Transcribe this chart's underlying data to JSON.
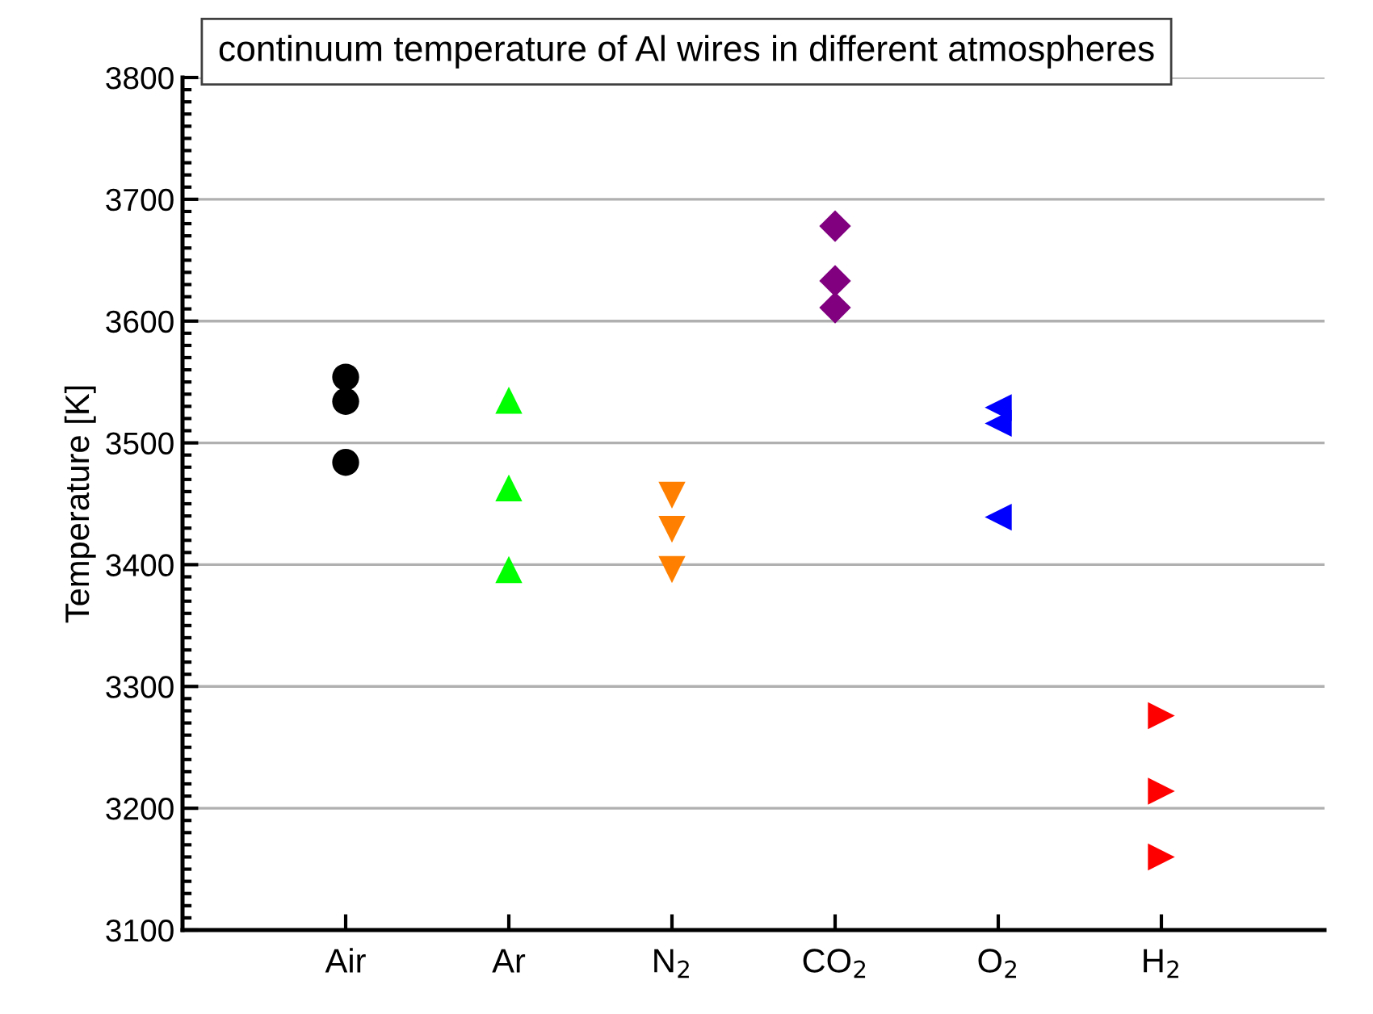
{
  "chart_data": {
    "type": "scatter",
    "title": "continuum temperature of Al wires in different atmospheres",
    "ylabel": "Temperature [K]",
    "categories": [
      "Air",
      "Ar",
      "N$_{2}$",
      "CO$_{2}$",
      "O$_{2}$",
      "H$_{2}$"
    ],
    "series": [
      {
        "color": "#000000",
        "marker": "circle",
        "x": [
          "Air",
          "Air",
          "Air"
        ],
        "values": [
          3554,
          3534,
          3484
        ]
      },
      {
        "color": "#00ff00",
        "marker": "triangle",
        "x": [
          "Ar",
          "Ar",
          "Ar"
        ],
        "values": [
          3535,
          3463,
          3396
        ]
      },
      {
        "color": "#ff8000",
        "marker": "triangle-down",
        "x": [
          "N$_{2}$",
          "N$_{2}$",
          "N$_{2}$"
        ],
        "values": [
          3457,
          3429,
          3396
        ]
      },
      {
        "color": "#800080",
        "marker": "diamond",
        "x": [
          "CO$_{2}$",
          "CO$_{2}$",
          "CO$_{2}$"
        ],
        "values": [
          3678,
          3633,
          3611
        ]
      },
      {
        "color": "#0000ff",
        "marker": "triangle-left",
        "x": [
          "O$_{2}$",
          "O$_{2}$",
          "O$_{2}$"
        ],
        "values": [
          3529,
          3516,
          3439
        ]
      },
      {
        "color": "#ff0000",
        "marker": "triangle-right",
        "x": [
          "H$_{2}$",
          "H$_{2}$",
          "H$_{2}$"
        ],
        "values": [
          3276,
          3214,
          3160
        ]
      }
    ],
    "ylim": [
      3100,
      3800
    ],
    "yticks": [
      3100,
      3200,
      3300,
      3400,
      3500,
      3600,
      3700,
      3800
    ],
    "grid": "y"
  }
}
